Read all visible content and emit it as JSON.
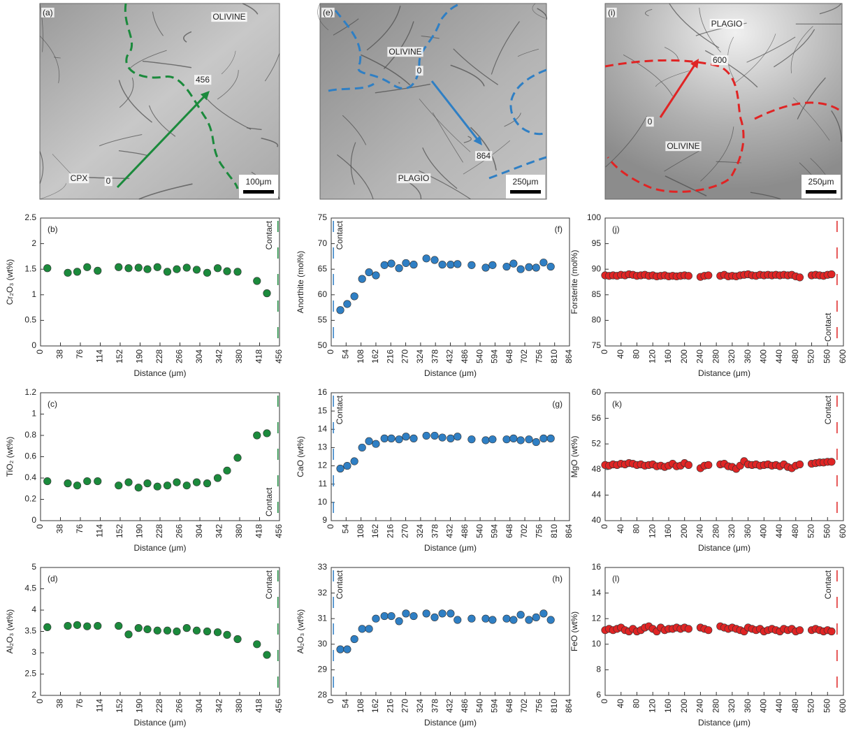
{
  "images": [
    {
      "panel": "(a)",
      "color": "#1b8a3c",
      "texts": [
        "OLIVINE",
        "456",
        "CPX",
        "0"
      ],
      "scale_bar": "100μm"
    },
    {
      "panel": "(e)",
      "color": "#2f7fc4",
      "texts": [
        "OLIVINE",
        "0",
        "864",
        "PLAGIO"
      ],
      "scale_bar": "250μm"
    },
    {
      "panel": "(i)",
      "color": "#e02424",
      "texts": [
        "PLAGIO",
        "600",
        "0",
        "OLIVINE"
      ],
      "scale_bar": "250μm"
    }
  ],
  "chart_data": [
    {
      "type": "scatter",
      "panel": "(b)",
      "xlabel": "Distance (μm)",
      "ylabel": "Cr₂O₃ (wt%)",
      "color": "#1b8a3c",
      "x": [
        13,
        52,
        70,
        89,
        109,
        149,
        168,
        187,
        204,
        223,
        242,
        260,
        279,
        298,
        318,
        338,
        356,
        376,
        413,
        432
      ],
      "values": [
        1.52,
        1.43,
        1.45,
        1.54,
        1.47,
        1.54,
        1.52,
        1.53,
        1.5,
        1.54,
        1.45,
        1.5,
        1.53,
        1.49,
        1.43,
        1.52,
        1.46,
        1.45,
        1.27,
        1.03
      ],
      "xlim": [
        0,
        456
      ],
      "xticks": [
        0,
        38,
        76,
        114,
        152,
        190,
        228,
        266,
        304,
        342,
        380,
        418,
        456
      ],
      "ylim": [
        0,
        2.5
      ],
      "yticks": [
        0,
        0.5,
        1,
        1.5,
        2,
        2.5
      ],
      "contact": {
        "x": 453,
        "label": "Contact"
      }
    },
    {
      "type": "scatter",
      "panel": "(c)",
      "xlabel": "Distance (μm)",
      "ylabel": "TiO₂ (wt%)",
      "color": "#1b8a3c",
      "x": [
        13,
        52,
        70,
        89,
        109,
        149,
        168,
        187,
        204,
        223,
        242,
        260,
        279,
        298,
        318,
        338,
        356,
        376,
        413,
        432
      ],
      "values": [
        0.37,
        0.35,
        0.33,
        0.37,
        0.37,
        0.33,
        0.36,
        0.31,
        0.35,
        0.32,
        0.33,
        0.36,
        0.33,
        0.36,
        0.35,
        0.4,
        0.47,
        0.59,
        0.8,
        0.82
      ],
      "xlim": [
        0,
        456
      ],
      "xticks": [
        0,
        38,
        76,
        114,
        152,
        190,
        228,
        266,
        304,
        342,
        380,
        418,
        456
      ],
      "ylim": [
        0,
        1.2
      ],
      "yticks": [
        0,
        0.2,
        0.4,
        0.6,
        0.8,
        1,
        1.2
      ],
      "contact": {
        "x": 453,
        "label": "Contact"
      }
    },
    {
      "type": "scatter",
      "panel": "(d)",
      "xlabel": "Distance (μm)",
      "ylabel": "Al₂O₃ (wt%)",
      "color": "#1b8a3c",
      "x": [
        13,
        52,
        70,
        89,
        109,
        149,
        168,
        187,
        204,
        223,
        242,
        260,
        279,
        298,
        318,
        338,
        356,
        376,
        413,
        432
      ],
      "values": [
        3.6,
        3.63,
        3.65,
        3.62,
        3.63,
        3.63,
        3.43,
        3.58,
        3.55,
        3.52,
        3.52,
        3.5,
        3.58,
        3.52,
        3.5,
        3.48,
        3.42,
        3.32,
        3.2,
        2.95
      ],
      "xlim": [
        0,
        456
      ],
      "xticks": [
        0,
        38,
        76,
        114,
        152,
        190,
        228,
        266,
        304,
        342,
        380,
        418,
        456
      ],
      "ylim": [
        2,
        5
      ],
      "yticks": [
        2,
        2.5,
        3,
        3.5,
        4,
        4.5,
        5
      ],
      "contact": {
        "x": 453,
        "label": "Contact"
      }
    },
    {
      "type": "scatter",
      "panel": "(f)",
      "xlabel": "Distance (μm)",
      "ylabel": "Anorthite (mol%)",
      "color": "#2f7fc4",
      "x": [
        33,
        58,
        84,
        112,
        137,
        162,
        193,
        218,
        246,
        271,
        299,
        345,
        375,
        403,
        433,
        458,
        509,
        560,
        585,
        636,
        661,
        687,
        717,
        743,
        770,
        796
      ],
      "values": [
        57,
        58.2,
        59.7,
        63.1,
        64.4,
        63.8,
        65.8,
        66.1,
        65.2,
        66.2,
        65.9,
        67.1,
        66.8,
        65.9,
        65.9,
        66,
        65.8,
        65.3,
        65.8,
        65.5,
        66.1,
        65,
        65.4,
        65.3,
        66.3,
        65.5
      ],
      "xlim": [
        0,
        864
      ],
      "xticks": [
        0,
        54,
        108,
        162,
        216,
        270,
        324,
        378,
        432,
        486,
        540,
        594,
        648,
        702,
        756,
        810,
        864
      ],
      "ylim": [
        50,
        75
      ],
      "yticks": [
        50,
        55,
        60,
        65,
        70,
        75
      ],
      "contact": {
        "x": 8,
        "label": "Contact"
      }
    },
    {
      "type": "scatter",
      "panel": "(g)",
      "xlabel": "Distance (μm)",
      "ylabel": "CaO (wt%)",
      "color": "#2f7fc4",
      "x": [
        33,
        58,
        84,
        112,
        137,
        162,
        193,
        218,
        246,
        271,
        299,
        345,
        375,
        403,
        433,
        458,
        509,
        560,
        585,
        636,
        661,
        687,
        717,
        743,
        770,
        796
      ],
      "values": [
        11.85,
        12,
        12.25,
        13,
        13.35,
        13.2,
        13.5,
        13.5,
        13.45,
        13.6,
        13.5,
        13.65,
        13.65,
        13.55,
        13.5,
        13.6,
        13.45,
        13.4,
        13.45,
        13.45,
        13.5,
        13.4,
        13.45,
        13.3,
        13.5,
        13.5
      ],
      "xlim": [
        0,
        864
      ],
      "xticks": [
        0,
        54,
        108,
        162,
        216,
        270,
        324,
        378,
        432,
        486,
        540,
        594,
        648,
        702,
        756,
        810,
        864
      ],
      "ylim": [
        9,
        16
      ],
      "yticks": [
        9,
        10,
        11,
        12,
        13,
        14,
        15,
        16
      ],
      "contact": {
        "x": 8,
        "label": "Contact"
      }
    },
    {
      "type": "scatter",
      "panel": "(h)",
      "xlabel": "Distance (μm)",
      "ylabel": "Al₂O₃ (wt%)",
      "color": "#2f7fc4",
      "x": [
        33,
        58,
        84,
        112,
        137,
        162,
        193,
        218,
        246,
        271,
        299,
        345,
        375,
        403,
        433,
        458,
        509,
        560,
        585,
        636,
        661,
        687,
        717,
        743,
        770,
        796
      ],
      "values": [
        29.8,
        29.8,
        30.2,
        30.6,
        30.6,
        31,
        31.1,
        31.1,
        30.9,
        31.2,
        31.1,
        31.2,
        31.05,
        31.2,
        31.2,
        30.95,
        31,
        31,
        30.95,
        31,
        30.95,
        31.15,
        30.95,
        31.05,
        31.2,
        30.95
      ],
      "xlim": [
        0,
        864
      ],
      "xticks": [
        0,
        54,
        108,
        162,
        216,
        270,
        324,
        378,
        432,
        486,
        540,
        594,
        648,
        702,
        756,
        810,
        864
      ],
      "ylim": [
        28,
        33
      ],
      "yticks": [
        28,
        29,
        30,
        31,
        32,
        33
      ],
      "contact": {
        "x": 8,
        "label": "Contact"
      }
    },
    {
      "type": "scatter",
      "panel": "(j)",
      "xlabel": "Distance (μm)",
      "ylabel": "Forsterite (mol%)",
      "color": "#e02424",
      "x": [
        0,
        10,
        20,
        30,
        40,
        50,
        60,
        70,
        80,
        90,
        100,
        110,
        120,
        130,
        140,
        150,
        160,
        170,
        180,
        190,
        200,
        210,
        240,
        250,
        260,
        290,
        300,
        310,
        320,
        330,
        340,
        350,
        360,
        370,
        380,
        390,
        400,
        410,
        420,
        430,
        440,
        450,
        460,
        470,
        480,
        490,
        520,
        530,
        540,
        550,
        560,
        570
      ],
      "values": [
        88.8,
        88.7,
        88.8,
        88.7,
        88.9,
        88.8,
        89.0,
        88.9,
        88.7,
        88.8,
        88.9,
        88.7,
        88.8,
        88.6,
        88.7,
        88.8,
        88.6,
        88.7,
        88.6,
        88.7,
        88.8,
        88.7,
        88.5,
        88.7,
        88.8,
        88.7,
        88.9,
        88.6,
        88.7,
        88.6,
        88.8,
        88.9,
        89.0,
        88.8,
        88.7,
        88.9,
        88.8,
        88.9,
        88.8,
        88.9,
        88.8,
        88.9,
        88.8,
        88.9,
        88.6,
        88.4,
        88.8,
        88.9,
        88.8,
        88.7,
        88.9,
        89.0
      ],
      "xlim": [
        0,
        600
      ],
      "xticks": [
        0,
        40,
        80,
        120,
        160,
        200,
        240,
        280,
        320,
        360,
        400,
        440,
        480,
        520,
        560,
        600
      ],
      "ylim": [
        75,
        100
      ],
      "yticks": [
        75,
        80,
        85,
        90,
        95,
        100
      ],
      "contact": {
        "x": 584,
        "label": "Contact"
      }
    },
    {
      "type": "scatter",
      "panel": "(k)",
      "xlabel": "Distance (μm)",
      "ylabel": "MgO (wt%)",
      "color": "#e02424",
      "x": [
        0,
        10,
        20,
        30,
        40,
        50,
        60,
        70,
        80,
        90,
        100,
        110,
        120,
        130,
        140,
        150,
        160,
        170,
        180,
        190,
        200,
        210,
        240,
        250,
        260,
        290,
        300,
        310,
        320,
        330,
        340,
        350,
        360,
        370,
        380,
        390,
        400,
        410,
        420,
        430,
        440,
        450,
        460,
        470,
        480,
        490,
        520,
        530,
        540,
        550,
        560,
        570
      ],
      "values": [
        48.7,
        48.6,
        48.8,
        48.7,
        48.9,
        48.8,
        49.0,
        48.9,
        48.7,
        48.8,
        48.6,
        48.7,
        48.8,
        48.5,
        48.6,
        48.4,
        48.6,
        48.9,
        48.5,
        48.6,
        49.0,
        48.7,
        48.2,
        48.6,
        48.7,
        48.8,
        48.9,
        48.5,
        48.4,
        48.1,
        48.6,
        49.3,
        48.8,
        48.7,
        48.8,
        48.6,
        48.7,
        48.8,
        48.6,
        48.7,
        48.5,
        48.8,
        48.4,
        48.2,
        48.6,
        48.8,
        48.9,
        49.0,
        49.1,
        49.1,
        49.2,
        49.2
      ],
      "xlim": [
        0,
        600
      ],
      "xticks": [
        0,
        40,
        80,
        120,
        160,
        200,
        240,
        280,
        320,
        360,
        400,
        440,
        480,
        520,
        560,
        600
      ],
      "ylim": [
        40,
        60
      ],
      "yticks": [
        40,
        44,
        48,
        52,
        56,
        60
      ],
      "contact": {
        "x": 584,
        "label": "Contact"
      }
    },
    {
      "type": "scatter",
      "panel": "(l)",
      "xlabel": "Distance (μm)",
      "ylabel": "FeO (wt%)",
      "color": "#e02424",
      "x": [
        0,
        10,
        20,
        30,
        40,
        50,
        60,
        70,
        80,
        90,
        100,
        110,
        120,
        130,
        140,
        150,
        160,
        170,
        180,
        190,
        200,
        210,
        240,
        250,
        260,
        290,
        300,
        310,
        320,
        330,
        340,
        350,
        360,
        370,
        380,
        390,
        400,
        410,
        420,
        430,
        440,
        450,
        460,
        470,
        480,
        490,
        520,
        530,
        540,
        550,
        560,
        570
      ],
      "values": [
        11.1,
        11.2,
        11.1,
        11.2,
        11.3,
        11.1,
        11.0,
        11.2,
        11.0,
        11.1,
        11.3,
        11.4,
        11.2,
        11.0,
        11.3,
        11.1,
        11.2,
        11.2,
        11.3,
        11.2,
        11.3,
        11.2,
        11.3,
        11.2,
        11.1,
        11.4,
        11.3,
        11.2,
        11.3,
        11.2,
        11.1,
        11.0,
        11.3,
        11.2,
        11.1,
        11.2,
        11.0,
        11.1,
        11.2,
        11.1,
        11.0,
        11.2,
        11.1,
        11.2,
        11.0,
        11.1,
        11.1,
        11.2,
        11.1,
        11.0,
        11.1,
        11.0
      ],
      "xlim": [
        0,
        600
      ],
      "xticks": [
        0,
        40,
        80,
        120,
        160,
        200,
        240,
        280,
        320,
        360,
        400,
        440,
        480,
        520,
        560,
        600
      ],
      "ylim": [
        6,
        16
      ],
      "yticks": [
        6,
        8,
        10,
        12,
        14,
        16
      ],
      "contact": {
        "x": 584,
        "label": "Contact"
      }
    }
  ]
}
